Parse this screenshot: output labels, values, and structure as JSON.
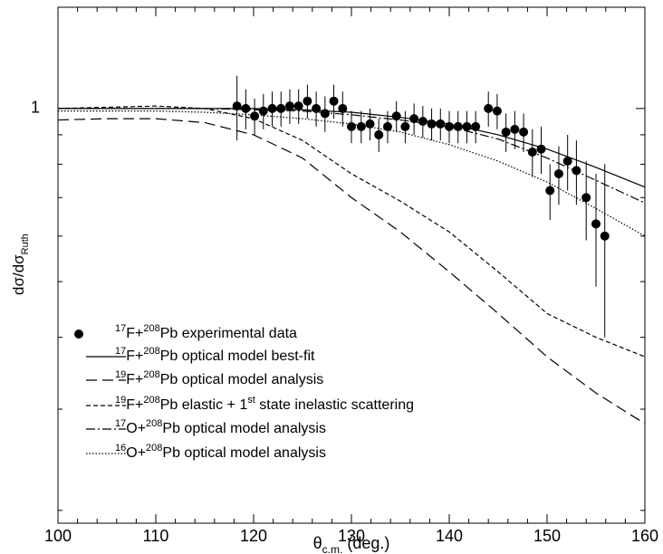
{
  "chart_data": {
    "type": "line",
    "log_y": true,
    "xlim": [
      100,
      160
    ],
    "xticks": [
      100,
      110,
      120,
      130,
      140,
      150,
      160
    ],
    "xminor": [
      102,
      104,
      106,
      108,
      112,
      114,
      116,
      118,
      122,
      124,
      126,
      128,
      132,
      134,
      136,
      138,
      142,
      144,
      146,
      148,
      152,
      154,
      156,
      158
    ],
    "ylim": [
      0.19,
      1.5
    ],
    "yticks": [
      1
    ],
    "yminor": [
      0.2,
      0.3,
      0.4,
      0.5,
      0.6,
      0.7,
      0.8,
      0.9
    ],
    "ylabel": "dσ/dσ",
    "ylabel_sub": "Ruth",
    "xlabel": "θ",
    "xlabel_sub": "c.m.",
    "xlabel_unit": " (deg.)",
    "points": {
      "name": "17F+208Pb experimental data",
      "color": "#000000",
      "x": [
        118.3,
        119.2,
        120.1,
        121.0,
        121.9,
        122.8,
        123.7,
        124.6,
        125.5,
        126.4,
        127.3,
        128.2,
        129.1,
        130.0,
        131.0,
        131.9,
        132.8,
        133.7,
        134.6,
        135.5,
        136.4,
        137.3,
        138.2,
        139.1,
        140.0,
        140.9,
        141.8,
        142.7,
        144.0,
        144.9,
        145.8,
        146.7,
        147.6,
        148.5,
        149.4,
        150.3,
        151.2,
        152.1,
        153.0,
        154.0,
        155.0,
        155.9
      ],
      "values": [
        1.01,
        1.0,
        0.97,
        0.99,
        1.0,
        1.0,
        1.01,
        1.01,
        1.03,
        1.0,
        0.98,
        1.03,
        1.0,
        0.93,
        0.93,
        0.94,
        0.9,
        0.93,
        0.97,
        0.93,
        0.96,
        0.95,
        0.94,
        0.94,
        0.93,
        0.93,
        0.93,
        0.93,
        1.0,
        0.99,
        0.91,
        0.92,
        0.91,
        0.84,
        0.85,
        0.72,
        0.77,
        0.81,
        0.78,
        0.7,
        0.63,
        0.6
      ],
      "errors": [
        0.13,
        0.08,
        0.07,
        0.07,
        0.07,
        0.07,
        0.07,
        0.07,
        0.07,
        0.07,
        0.07,
        0.07,
        0.07,
        0.06,
        0.06,
        0.06,
        0.06,
        0.06,
        0.06,
        0.06,
        0.06,
        0.06,
        0.06,
        0.06,
        0.06,
        0.06,
        0.06,
        0.06,
        0.07,
        0.07,
        0.07,
        0.07,
        0.07,
        0.08,
        0.08,
        0.08,
        0.09,
        0.09,
        0.1,
        0.11,
        0.14,
        0.2
      ]
    },
    "x": [
      100,
      105,
      110,
      115,
      120,
      125,
      130,
      135,
      140,
      145,
      150,
      155,
      160
    ],
    "series": [
      {
        "name": "17F+208Pb optical model best-fit",
        "color": "#000000",
        "dash": "none",
        "values": [
          1.0,
          1.0,
          1.0,
          1.0,
          1.0,
          0.995,
          0.985,
          0.965,
          0.94,
          0.9,
          0.85,
          0.79,
          0.73
        ]
      },
      {
        "name": "19F+208Pb optical model analysis",
        "color": "#000000",
        "dash": "12,6",
        "values": [
          0.955,
          0.96,
          0.96,
          0.945,
          0.9,
          0.82,
          0.7,
          0.61,
          0.52,
          0.44,
          0.37,
          0.32,
          0.283
        ]
      },
      {
        "name": "19F+208Pb elastic + 1st state inelastic scattering",
        "color": "#000000",
        "dash": "5,3",
        "values": [
          1.0,
          1.005,
          1.01,
          1.0,
          0.96,
          0.88,
          0.77,
          0.69,
          0.61,
          0.52,
          0.44,
          0.4,
          0.37
        ]
      },
      {
        "name": "17O+208Pb optical model analysis",
        "color": "#000000",
        "dash": "10,3,2,3",
        "values": [
          1.0,
          1.0,
          1.0,
          1.0,
          0.995,
          0.99,
          0.975,
          0.955,
          0.93,
          0.885,
          0.82,
          0.75,
          0.685
        ]
      },
      {
        "name": "16O+208Pb optical model analysis",
        "color": "#000000",
        "dash": "1.5,2",
        "values": [
          0.99,
          0.99,
          0.99,
          0.985,
          0.975,
          0.96,
          0.94,
          0.91,
          0.865,
          0.81,
          0.745,
          0.67,
          0.6
        ]
      }
    ]
  }
}
